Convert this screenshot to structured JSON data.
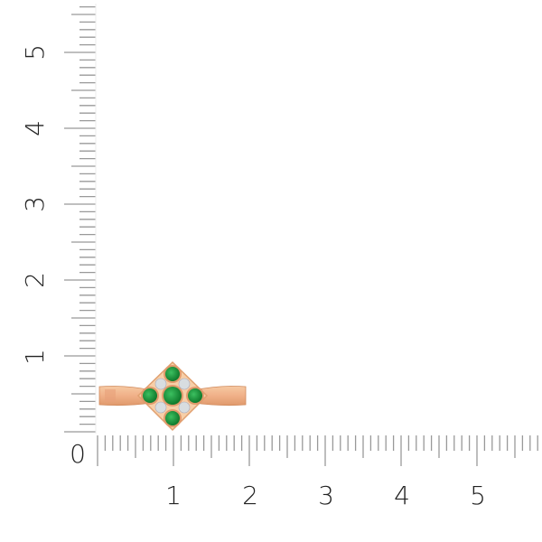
{
  "rulers": {
    "unit_labels_x": [
      "0",
      "1",
      "2",
      "3",
      "4",
      "5"
    ],
    "unit_labels_y": [
      "1",
      "2",
      "3",
      "4",
      "5"
    ]
  },
  "product": {
    "icon": "ring-with-emeralds-and-diamonds",
    "colors": {
      "metal": "#f2b98e",
      "metal_shadow": "#d98c5f",
      "emerald": "#1a9a3c",
      "diamond": "#d8dde0"
    }
  }
}
